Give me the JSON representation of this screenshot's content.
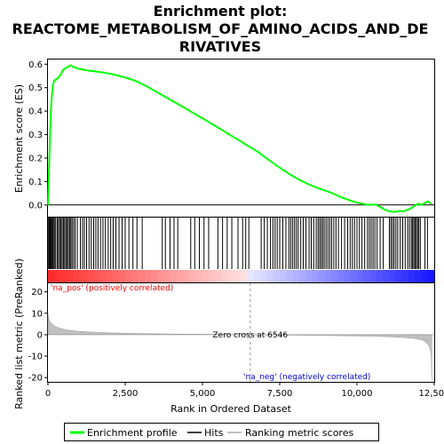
{
  "chart_data": {
    "type": "line",
    "title_lines": [
      "Enrichment plot:",
      "REACTOME_METABOLISM_OF_AMINO_ACIDS_AND_DE",
      "RIVATIVES"
    ],
    "es_panel": {
      "ylabel": "Enrichment score (ES)",
      "ylim": [
        -0.05,
        0.62
      ],
      "yticks": [
        "0.0",
        "0.1",
        "0.2",
        "0.3",
        "0.4",
        "0.5",
        "0.6"
      ],
      "ytick_values": [
        0.0,
        0.1,
        0.2,
        0.3,
        0.4,
        0.5,
        0.6
      ],
      "series": [
        {
          "name": "Enrichment profile",
          "color": "#00ff00",
          "x": [
            0,
            30,
            60,
            90,
            120,
            160,
            200,
            260,
            320,
            380,
            430,
            480,
            540,
            600,
            660,
            720,
            800,
            900,
            1000,
            1100,
            1200,
            1350,
            1500,
            1700,
            1900,
            2100,
            2300,
            2500,
            2700,
            2900,
            3100,
            3300,
            3500,
            3700,
            3900,
            4100,
            4300,
            4500,
            4700,
            4900,
            5100,
            5300,
            5500,
            5700,
            5900,
            6100,
            6300,
            6546,
            6800,
            7000,
            7200,
            7400,
            7600,
            7800,
            8000,
            8200,
            8400,
            8600,
            8800,
            9000,
            9200,
            9400,
            9600,
            9800,
            10000,
            10200,
            10400,
            10600,
            10700,
            10800,
            10900,
            11000,
            11100,
            11200,
            11300,
            11400,
            11500,
            11600,
            11700,
            11800,
            11900,
            12000,
            12100,
            12200,
            12300,
            12400
          ],
          "y": [
            0.0,
            0.12,
            0.26,
            0.38,
            0.46,
            0.51,
            0.53,
            0.535,
            0.54,
            0.55,
            0.56,
            0.575,
            0.58,
            0.585,
            0.59,
            0.595,
            0.59,
            0.585,
            0.58,
            0.578,
            0.575,
            0.572,
            0.57,
            0.566,
            0.562,
            0.557,
            0.55,
            0.543,
            0.535,
            0.525,
            0.512,
            0.498,
            0.483,
            0.468,
            0.453,
            0.438,
            0.423,
            0.408,
            0.392,
            0.377,
            0.362,
            0.346,
            0.33,
            0.314,
            0.298,
            0.282,
            0.266,
            0.246,
            0.226,
            0.206,
            0.187,
            0.168,
            0.15,
            0.133,
            0.117,
            0.103,
            0.09,
            0.079,
            0.069,
            0.06,
            0.05,
            0.038,
            0.028,
            0.018,
            0.01,
            0.004,
            0.0,
            0.002,
            -0.005,
            -0.012,
            -0.02,
            -0.025,
            -0.028,
            -0.03,
            -0.028,
            -0.025,
            -0.028,
            -0.022,
            -0.018,
            -0.01,
            0.0,
            0.005,
            0.0,
            0.01,
            0.015,
            0.005
          ]
        }
      ]
    },
    "hits_panel": {
      "series_name": "Hits",
      "hit_positions": [
        20,
        45,
        70,
        95,
        120,
        150,
        175,
        210,
        250,
        300,
        340,
        380,
        420,
        460,
        500,
        540,
        580,
        620,
        660,
        700,
        740,
        780,
        830,
        880,
        950,
        1050,
        1120,
        1180,
        1250,
        1330,
        1400,
        1480,
        1550,
        1620,
        1700,
        1780,
        1860,
        1950,
        2030,
        2110,
        2200,
        2300,
        2400,
        2500,
        2620,
        2750,
        2880,
        3050,
        3700,
        3800,
        3950,
        4080,
        4200,
        4620,
        4750,
        4900,
        5050,
        5200,
        5500,
        5650,
        5800,
        5950,
        6150,
        6300,
        6400,
        6500,
        6900,
        7000,
        7100,
        7200,
        7280,
        7350,
        7420,
        7500,
        7600,
        7700,
        7800,
        7860,
        7920,
        7980,
        8040,
        8100,
        8180,
        8260,
        8350,
        8450,
        8520,
        8600,
        8680,
        8740,
        8790,
        8840,
        8890,
        8940,
        9000,
        9060,
        9120,
        9180,
        9250,
        9320,
        9400,
        9500,
        9600,
        9700,
        9780,
        9850,
        9920,
        10000,
        10080,
        10160,
        10250,
        10340,
        10400,
        10460,
        10520,
        10580,
        10650,
        10750,
        10850,
        11050,
        11100,
        11150,
        11200,
        11260,
        11320,
        11400,
        11480,
        11560,
        11640,
        11700,
        11760,
        11800,
        11840,
        11880,
        11920,
        11960,
        12000,
        12050,
        12200,
        12280
      ]
    },
    "metric_panel": {
      "ylabel": "Ranked list metric (PreRanked)",
      "ylim": [
        -22,
        24
      ],
      "yticks": [
        "20",
        "10",
        "0",
        "-10",
        "-20"
      ],
      "ytick_values": [
        20,
        10,
        0,
        -10,
        -20
      ],
      "series_name": "Ranking metric scores",
      "x": [
        0,
        20,
        50,
        100,
        150,
        200,
        300,
        400,
        500,
        600,
        800,
        1000,
        1500,
        2000,
        2500,
        3000,
        4000,
        5000,
        6000,
        6546,
        7000,
        8000,
        9000,
        10000,
        10500,
        11000,
        11500,
        11800,
        12000,
        12100,
        12200,
        12300,
        12350,
        12400,
        12420
      ],
      "y": [
        10,
        8,
        6.5,
        5.5,
        4.8,
        4.2,
        3.5,
        3.0,
        2.6,
        2.3,
        1.9,
        1.6,
        1.2,
        0.9,
        0.7,
        0.55,
        0.35,
        0.2,
        0.08,
        0.0,
        -0.1,
        -0.25,
        -0.4,
        -0.6,
        -0.75,
        -0.95,
        -1.3,
        -1.7,
        -2.1,
        -2.5,
        -3.2,
        -4.5,
        -6,
        -9,
        -21
      ],
      "pos_label": "'na_pos' (positively correlated)",
      "neg_label": "'na_neg' (negatively correlated)",
      "zero_cross_label": "Zero cross at 6546",
      "zero_cross": 6546,
      "pos_color": "#ff0000",
      "neg_color": "#0000ff"
    },
    "xaxis": {
      "xlabel": "Rank in Ordered Dataset",
      "xlim": [
        0,
        12500
      ],
      "xticks": [
        "0",
        "2,500",
        "5,000",
        "7,500",
        "10,000",
        "12,500"
      ],
      "xtick_values": [
        0,
        2500,
        5000,
        7500,
        10000,
        12500
      ]
    },
    "legend": {
      "placement": "bottom",
      "entries": [
        "Enrichment profile",
        "Hits",
        "Ranking metric scores"
      ]
    }
  }
}
